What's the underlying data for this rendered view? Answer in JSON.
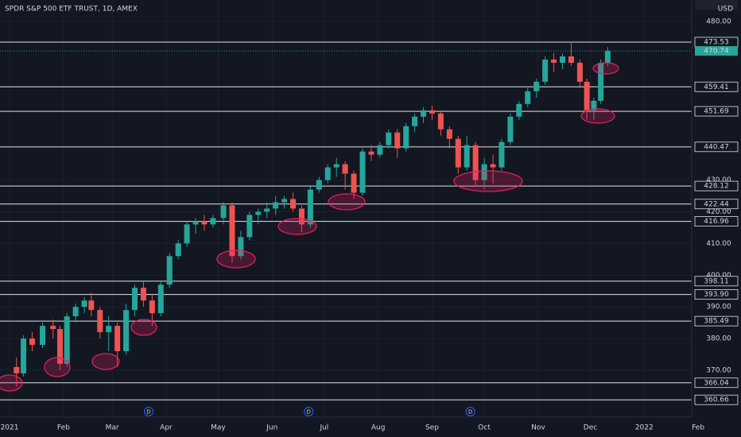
{
  "chart_data": {
    "type": "candlestick",
    "title": "SPDR S&P 500 ETF TRUST, 1D, AMEX",
    "currency": "USD",
    "up_color": "#26a69a",
    "down_color": "#ef5350",
    "ylim": [
      355.2,
      486.8
    ],
    "xlim": [
      -5.5,
      392.3
    ],
    "yticks": [
      {
        "value": 480,
        "label": "480.00"
      },
      {
        "value": 430,
        "label": "430.00"
      },
      {
        "value": 420,
        "label": "420.00"
      },
      {
        "value": 410,
        "label": "410.00"
      },
      {
        "value": 400,
        "label": "400.00"
      },
      {
        "value": 390,
        "label": "390.00"
      },
      {
        "value": 380,
        "label": "380.00"
      },
      {
        "value": 370,
        "label": "370.00"
      }
    ],
    "xticks": [
      {
        "value": 0,
        "label": "2021"
      },
      {
        "value": 31,
        "label": "Feb"
      },
      {
        "value": 59,
        "label": "Mar"
      },
      {
        "value": 90,
        "label": "Apr"
      },
      {
        "value": 120,
        "label": "May"
      },
      {
        "value": 151,
        "label": "Jun"
      },
      {
        "value": 181,
        "label": "Jul"
      },
      {
        "value": 212,
        "label": "Aug"
      },
      {
        "value": 243,
        "label": "Sep"
      },
      {
        "value": 273,
        "label": "Oct"
      },
      {
        "value": 304,
        "label": "Nov"
      },
      {
        "value": 334,
        "label": "Dec"
      },
      {
        "value": 365,
        "label": "2022"
      },
      {
        "value": 396,
        "label": "Feb"
      }
    ],
    "levels": [
      473.53,
      459.41,
      451.69,
      440.47,
      428.12,
      422.44,
      416.96,
      398.11,
      {
        "value": 393.9,
        "label": "393.90"
      },
      385.49,
      366.04,
      360.66
    ],
    "high": [
      374,
      381,
      382,
      385,
      386,
      384,
      388,
      391,
      393,
      394.5,
      390,
      387,
      385,
      391,
      397,
      398,
      394,
      398,
      407,
      411,
      417,
      418,
      419,
      419,
      423,
      423,
      414,
      420,
      421,
      423,
      425,
      425,
      426,
      422,
      428,
      431,
      435,
      437,
      436,
      433,
      440,
      441,
      442,
      446,
      446,
      448,
      451,
      453,
      453.5,
      452,
      447,
      444,
      444,
      442,
      437,
      438,
      443,
      451,
      455,
      459,
      462,
      469,
      470,
      470,
      473.54,
      468,
      462,
      456,
      468,
      472
    ],
    "low": [
      364.82,
      368,
      376,
      377,
      380,
      370,
      371,
      385,
      388,
      387,
      380,
      376,
      371,
      375,
      387,
      390,
      384,
      387,
      396,
      405,
      409,
      413,
      414,
      415,
      416,
      404,
      405,
      411,
      416,
      418,
      419,
      421,
      420,
      413.5,
      415,
      426,
      429,
      431,
      427,
      424,
      425,
      436,
      437,
      440,
      437,
      439,
      445,
      448,
      449,
      444,
      440,
      432,
      433,
      428,
      427,
      429,
      433,
      441,
      449,
      453,
      456,
      460,
      464,
      465,
      466,
      459,
      449,
      449,
      454,
      466
    ],
    "last": 470.74,
    "markers": [
      {
        "x": 80,
        "label": "D"
      },
      {
        "x": 172,
        "label": "D"
      },
      {
        "x": 265,
        "label": "D"
      }
    ],
    "x": [
      4,
      8,
      13,
      19,
      25,
      29,
      33,
      38,
      43,
      47,
      52,
      57,
      62,
      67,
      72,
      77,
      82,
      87,
      92,
      97,
      102,
      107,
      112,
      117,
      123,
      128,
      133,
      138,
      143,
      148,
      153,
      158,
      163,
      168,
      173,
      178,
      183,
      188,
      193,
      198,
      203,
      208,
      213,
      218,
      223,
      228,
      233,
      238,
      243,
      248,
      253,
      258,
      263,
      268,
      273,
      278,
      283,
      288,
      293,
      298,
      303,
      308,
      313,
      318,
      323,
      328,
      332,
      336,
      340,
      344
    ],
    "open": [
      371,
      369,
      380,
      378,
      384,
      383,
      372,
      387,
      390,
      392,
      389,
      382,
      384,
      376,
      389,
      396,
      392,
      388,
      397,
      406,
      410,
      416,
      417,
      416,
      418,
      422,
      406,
      412,
      419,
      420,
      421,
      423,
      424,
      421,
      416,
      427,
      430,
      434,
      435,
      432,
      426,
      439,
      438,
      441,
      445,
      440,
      447,
      450,
      452,
      451,
      446,
      443,
      434,
      441,
      430,
      435,
      434,
      442,
      450,
      454,
      458,
      461,
      468,
      467,
      469,
      467,
      461,
      452,
      455,
      467
    ],
    "close": [
      369,
      380,
      378,
      384,
      383,
      372,
      387,
      390,
      392,
      389,
      382,
      384,
      376,
      389,
      396,
      392,
      388,
      397,
      406,
      410,
      416,
      417,
      416,
      418,
      422,
      406,
      412,
      419,
      420,
      421,
      423,
      424,
      421,
      416,
      427,
      430,
      434,
      435,
      432,
      426,
      439,
      438,
      441,
      445,
      440,
      447,
      450,
      452,
      451,
      446,
      443,
      434,
      441,
      430,
      435,
      434,
      442,
      450,
      454,
      458,
      461,
      468,
      467,
      469,
      467,
      461,
      452,
      455,
      467,
      470.74
    ]
  }
}
